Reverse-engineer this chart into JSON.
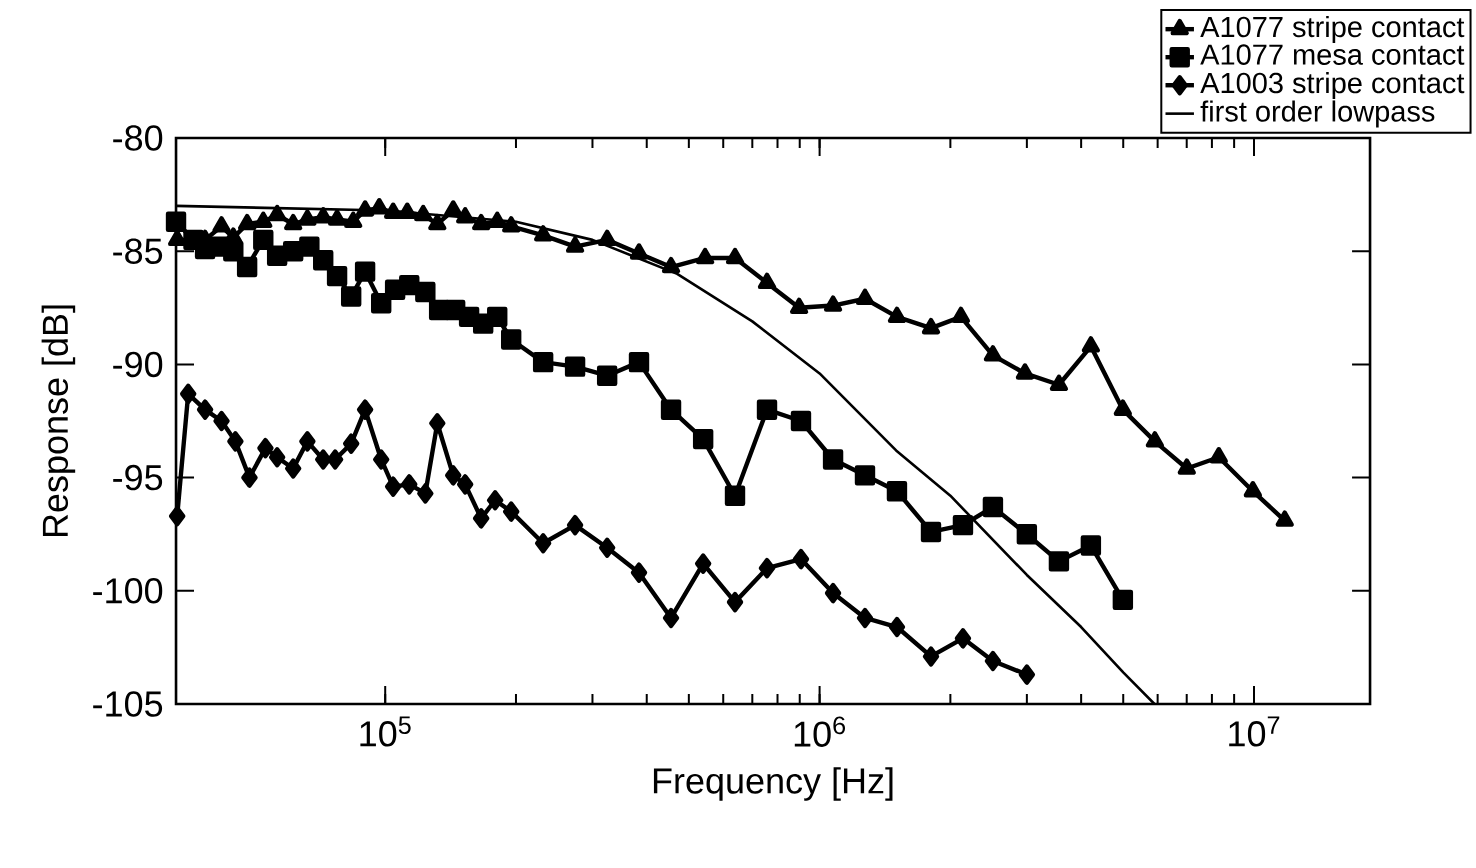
{
  "chart_data": {
    "type": "line",
    "xlabel": "Frequency [Hz]",
    "ylabel": "Response [dB]",
    "log": "x",
    "grid": false,
    "legend": "top right",
    "xlim": [
      33000,
      18500000
    ],
    "ylim": [
      -105,
      -80
    ],
    "xticks": [
      {
        "value": 100000,
        "label": "10$^{5}$"
      },
      {
        "value": 1000000,
        "label": "10$^{6}$"
      },
      {
        "value": 10000000,
        "label": "10$^{7}$"
      }
    ],
    "yticks": [
      -105,
      -100,
      -95,
      -90,
      -85,
      -80
    ],
    "series": [
      {
        "name": "A1077 stripe contact",
        "color": "#000000",
        "marker": "triangle",
        "line_style": "solid",
        "x": [
          33200,
          38500,
          42000,
          44700,
          48100,
          52400,
          56400,
          61400,
          66200,
          72000,
          77500,
          84400,
          89900,
          96900,
          104300,
          112400,
          122300,
          131800,
          143400,
          152800,
          166300,
          181100,
          195000,
          231000,
          273600,
          324300,
          384000,
          455000,
          545000,
          638700,
          756800,
          897000,
          1074000,
          1272000,
          1507000,
          1805000,
          2115000,
          2506000,
          2970000,
          3556000,
          4212000,
          4990000,
          5913000,
          7004000,
          8298000,
          9940000,
          11770000
        ],
        "values": [
          -84.5,
          -84.5,
          -83.9,
          -84.4,
          -83.8,
          -83.7,
          -83.4,
          -83.8,
          -83.6,
          -83.5,
          -83.6,
          -83.7,
          -83.2,
          -83.1,
          -83.3,
          -83.3,
          -83.4,
          -83.8,
          -83.2,
          -83.5,
          -83.8,
          -83.7,
          -83.9,
          -84.3,
          -84.8,
          -84.5,
          -85.1,
          -85.7,
          -85.3,
          -85.3,
          -86.4,
          -87.5,
          -87.4,
          -87.1,
          -87.9,
          -88.4,
          -87.9,
          -89.6,
          -90.4,
          -90.9,
          -89.2,
          -92.0,
          -93.4,
          -94.6,
          -94.1,
          -95.6,
          -96.9
        ]
      },
      {
        "name": "A1077 mesa contact",
        "color": "#000000",
        "marker": "square",
        "line_style": "solid",
        "x": [
          33000,
          36200,
          38500,
          41500,
          44700,
          48100,
          52400,
          56400,
          61400,
          66900,
          72000,
          77500,
          83500,
          89900,
          97900,
          105400,
          113600,
          123700,
          133100,
          144900,
          156000,
          168100,
          181100,
          195000,
          231000,
          273600,
          324300,
          384000,
          455000,
          539400,
          638700,
          756800,
          906000,
          1074000,
          1272000,
          1507000,
          1805000,
          2138000,
          2506000,
          3000000,
          3556000,
          4212000,
          4990000
        ],
        "values": [
          -83.7,
          -84.5,
          -84.9,
          -84.8,
          -85.0,
          -85.7,
          -84.5,
          -85.2,
          -85.0,
          -84.8,
          -85.4,
          -86.1,
          -87.0,
          -85.9,
          -87.3,
          -86.7,
          -86.5,
          -86.8,
          -87.6,
          -87.6,
          -87.9,
          -88.2,
          -87.9,
          -88.9,
          -89.9,
          -90.1,
          -90.5,
          -89.9,
          -92.0,
          -93.3,
          -95.8,
          -92.0,
          -92.5,
          -94.2,
          -94.9,
          -95.6,
          -97.4,
          -97.1,
          -96.3,
          -97.5,
          -98.7,
          -98.0,
          -100.4
        ]
      },
      {
        "name": "A1003 stripe contact",
        "color": "#000000",
        "marker": "diamond",
        "line_style": "solid",
        "x": [
          33200,
          35200,
          38500,
          42000,
          45200,
          48700,
          53000,
          56400,
          61400,
          66200,
          72000,
          76700,
          83500,
          89900,
          97900,
          104300,
          113600,
          123700,
          131800,
          143400,
          152800,
          166300,
          179100,
          195000,
          231000,
          273600,
          324300,
          384000,
          455000,
          539400,
          638700,
          756800,
          906000,
          1074000,
          1272000,
          1507000,
          1805000,
          2138000,
          2506000,
          3000000
        ],
        "values": [
          -96.7,
          -91.3,
          -92.0,
          -92.5,
          -93.4,
          -95.0,
          -93.7,
          -94.1,
          -94.6,
          -93.4,
          -94.2,
          -94.2,
          -93.5,
          -92.0,
          -94.2,
          -95.4,
          -95.3,
          -95.7,
          -92.6,
          -94.9,
          -95.3,
          -96.8,
          -96.0,
          -96.5,
          -97.9,
          -97.1,
          -98.1,
          -99.2,
          -101.2,
          -98.8,
          -100.5,
          -99.0,
          -98.6,
          -100.1,
          -101.2,
          -101.6,
          -102.9,
          -102.1,
          -103.1,
          -103.7
        ]
      },
      {
        "name": "first order lowpass",
        "color": "#000000",
        "marker": "none",
        "line_style": "solid",
        "x": [
          33000,
          100000,
          200000,
          300000,
          470000,
          700000,
          1000000,
          1500000,
          2000000,
          3000000,
          4000000,
          5000000,
          5900000
        ],
        "values": [
          -83.0,
          -83.2,
          -83.7,
          -84.5,
          -86.0,
          -88.1,
          -90.4,
          -93.8,
          -95.8,
          -99.3,
          -101.6,
          -103.6,
          -105.0
        ]
      }
    ]
  }
}
